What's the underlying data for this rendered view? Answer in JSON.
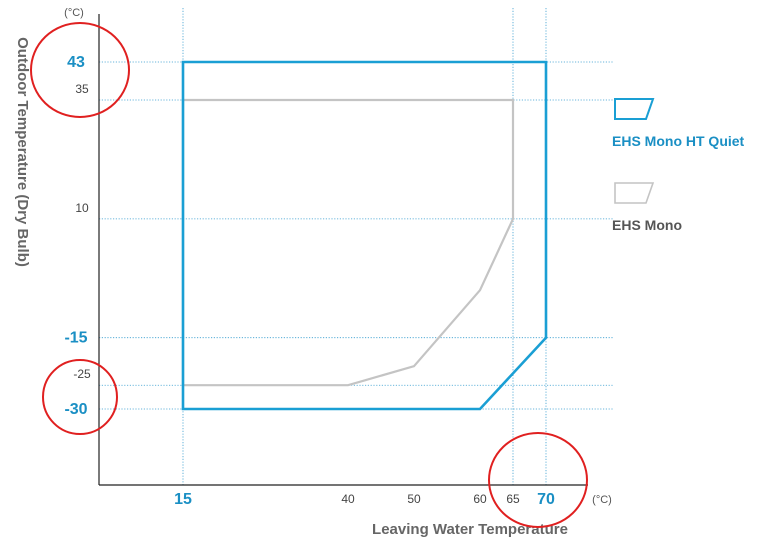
{
  "chart_data": {
    "type": "area",
    "xlabel": "Leaving Water Temperature",
    "ylabel": "Outdoor Temperature (Dry Bulb)",
    "x_unit": "(°C)",
    "y_unit": "(°C)",
    "xlim": [
      5,
      78
    ],
    "ylim": [
      -43,
      50
    ],
    "x_ticks": [
      {
        "value": 15,
        "label": "15",
        "style": "major"
      },
      {
        "value": 40,
        "label": "40",
        "style": "minor"
      },
      {
        "value": 50,
        "label": "50",
        "style": "minor"
      },
      {
        "value": 60,
        "label": "60",
        "style": "minor"
      },
      {
        "value": 65,
        "label": "65",
        "style": "minor"
      },
      {
        "value": 70,
        "label": "70",
        "style": "major"
      }
    ],
    "y_ticks": [
      {
        "value": 43,
        "label": "43",
        "style": "major"
      },
      {
        "value": 35,
        "label": "35",
        "style": "minor"
      },
      {
        "value": 10,
        "label": "10",
        "style": "minor"
      },
      {
        "value": -15,
        "label": "-15",
        "style": "major"
      },
      {
        "value": -25,
        "label": "-25",
        "style": "minor"
      },
      {
        "value": -30,
        "label": "-30",
        "style": "major"
      }
    ],
    "gridlines_x": [
      15,
      65,
      70
    ],
    "gridlines_y": [
      43,
      35,
      10,
      -15,
      -25,
      -30
    ],
    "series": [
      {
        "name": "EHS Mono HT Quiet",
        "color": "#1a9fd4",
        "points": [
          [
            15,
            43
          ],
          [
            70,
            43
          ],
          [
            70,
            -15
          ],
          [
            60,
            -30
          ],
          [
            15,
            -30
          ]
        ]
      },
      {
        "name": "EHS Mono",
        "color": "#c4c4c4",
        "points": [
          [
            15,
            35
          ],
          [
            65,
            35
          ],
          [
            65,
            10
          ],
          [
            60,
            -5
          ],
          [
            50,
            -21
          ],
          [
            40,
            -25
          ],
          [
            15,
            -25
          ]
        ]
      }
    ],
    "annotations": [
      {
        "type": "circle",
        "target": "43",
        "color": "#e02020"
      },
      {
        "type": "circle",
        "target": "-30",
        "color": "#e02020"
      },
      {
        "type": "circle",
        "target": "70",
        "color": "#e02020"
      }
    ],
    "legend_position": "right",
    "grid": true
  }
}
